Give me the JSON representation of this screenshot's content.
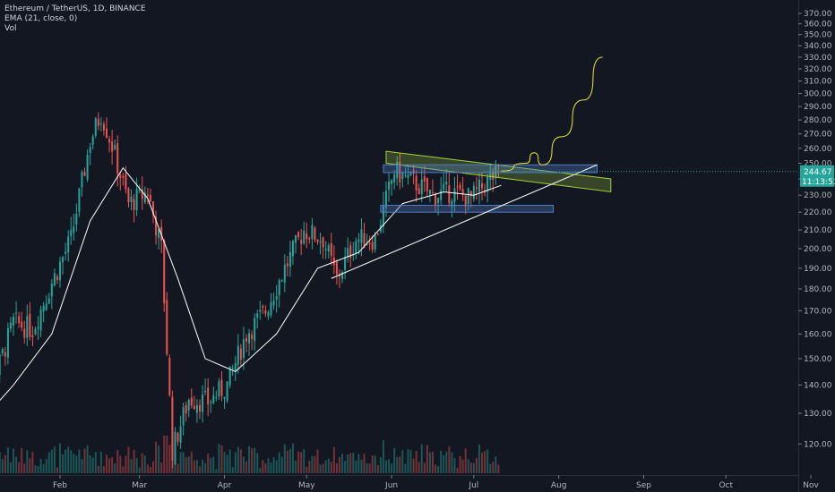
{
  "legend": {
    "symbol": "Ethereum / TetherUS, 1D, BINANCE",
    "ema": "EMA (21, close, 0)",
    "vol": "Vol"
  },
  "price_tag": {
    "value": "244.67",
    "countdown": "11:13:53",
    "color": "#26a69a"
  },
  "colors": {
    "background": "#131722",
    "up": "#26a69a",
    "down": "#ef5350",
    "ema": "#ffffff",
    "channel": "#a5d23c",
    "range_box": "#4f7cc4",
    "projection": "#e6e63c"
  },
  "chart_data": {
    "type": "candlestick",
    "x_ticks": [
      "Feb",
      "Mar",
      "Apr",
      "May",
      "Jun",
      "Jul",
      "Aug",
      "Sep",
      "Oct",
      "Nov"
    ],
    "y_ticks": [
      "370.00",
      "360.00",
      "350.00",
      "340.00",
      "330.00",
      "320.00",
      "310.00",
      "300.00",
      "290.00",
      "280.00",
      "270.00",
      "260.00",
      "250.00",
      "240.00",
      "230.00",
      "220.00",
      "210.00",
      "200.00",
      "190.00",
      "180.00",
      "170.00",
      "160.00",
      "150.00",
      "140.00",
      "130.00",
      "120.00"
    ],
    "ylim": [
      115,
      373
    ],
    "log_scale": true,
    "grid": false,
    "price_path_weekly": [
      {
        "date": "2020-01-01",
        "close": 130
      },
      {
        "date": "2020-01-08",
        "close": 142
      },
      {
        "date": "2020-01-15",
        "close": 165
      },
      {
        "date": "2020-01-22",
        "close": 162
      },
      {
        "date": "2020-01-29",
        "close": 183
      },
      {
        "date": "2020-02-05",
        "close": 205
      },
      {
        "date": "2020-02-12",
        "close": 265
      },
      {
        "date": "2020-02-16",
        "close": 285
      },
      {
        "date": "2020-02-20",
        "close": 262
      },
      {
        "date": "2020-02-26",
        "close": 225
      },
      {
        "date": "2020-03-04",
        "close": 232
      },
      {
        "date": "2020-03-09",
        "close": 200
      },
      {
        "date": "2020-03-13",
        "close": 118
      },
      {
        "date": "2020-03-19",
        "close": 135
      },
      {
        "date": "2020-03-26",
        "close": 134
      },
      {
        "date": "2020-04-02",
        "close": 140
      },
      {
        "date": "2020-04-09",
        "close": 160
      },
      {
        "date": "2020-04-16",
        "close": 170
      },
      {
        "date": "2020-04-23",
        "close": 190
      },
      {
        "date": "2020-04-30",
        "close": 210
      },
      {
        "date": "2020-05-07",
        "close": 205
      },
      {
        "date": "2020-05-12",
        "close": 185
      },
      {
        "date": "2020-05-19",
        "close": 205
      },
      {
        "date": "2020-05-26",
        "close": 205
      },
      {
        "date": "2020-06-02",
        "close": 245
      },
      {
        "date": "2020-06-09",
        "close": 238
      },
      {
        "date": "2020-06-16",
        "close": 230
      },
      {
        "date": "2020-06-23",
        "close": 232
      },
      {
        "date": "2020-06-30",
        "close": 228
      },
      {
        "date": "2020-07-07",
        "close": 240
      },
      {
        "date": "2020-07-11",
        "close": 244.67
      }
    ],
    "ema_path": [
      {
        "date": "2020-01-01",
        "value": 125
      },
      {
        "date": "2020-01-15",
        "value": 140
      },
      {
        "date": "2020-01-29",
        "value": 160
      },
      {
        "date": "2020-02-12",
        "value": 215
      },
      {
        "date": "2020-02-24",
        "value": 247
      },
      {
        "date": "2020-03-04",
        "value": 228
      },
      {
        "date": "2020-03-15",
        "value": 185
      },
      {
        "date": "2020-03-25",
        "value": 150
      },
      {
        "date": "2020-04-05",
        "value": 145
      },
      {
        "date": "2020-04-20",
        "value": 160
      },
      {
        "date": "2020-05-05",
        "value": 190
      },
      {
        "date": "2020-05-20",
        "value": 198
      },
      {
        "date": "2020-06-05",
        "value": 225
      },
      {
        "date": "2020-06-20",
        "value": 232
      },
      {
        "date": "2020-07-01",
        "value": 230
      },
      {
        "date": "2020-07-11",
        "value": 236
      }
    ],
    "drawings": {
      "descending_channel": {
        "start": {
          "date": "2020-05-30",
          "upper": 258,
          "lower": 250
        },
        "end": {
          "date": "2020-08-20",
          "upper": 240,
          "lower": 232
        }
      },
      "range_box_upper": {
        "start_date": "2020-05-29",
        "end_date": "2020-08-15",
        "top": 249,
        "bottom": 244
      },
      "range_box_lower": {
        "start_date": "2020-05-28",
        "end_date": "2020-07-30",
        "top": 224,
        "bottom": 220
      },
      "ascending_trendline": {
        "start": {
          "date": "2020-05-10",
          "value": 185
        },
        "end": {
          "date": "2020-08-15",
          "value": 249
        }
      },
      "projection_path": [
        {
          "date": "2020-07-11",
          "value": 245
        },
        {
          "date": "2020-07-20",
          "value": 250
        },
        {
          "date": "2020-07-23",
          "value": 257
        },
        {
          "date": "2020-07-26",
          "value": 249
        },
        {
          "date": "2020-08-02",
          "value": 268
        },
        {
          "date": "2020-08-10",
          "value": 295
        },
        {
          "date": "2020-08-17",
          "value": 330
        }
      ]
    }
  }
}
